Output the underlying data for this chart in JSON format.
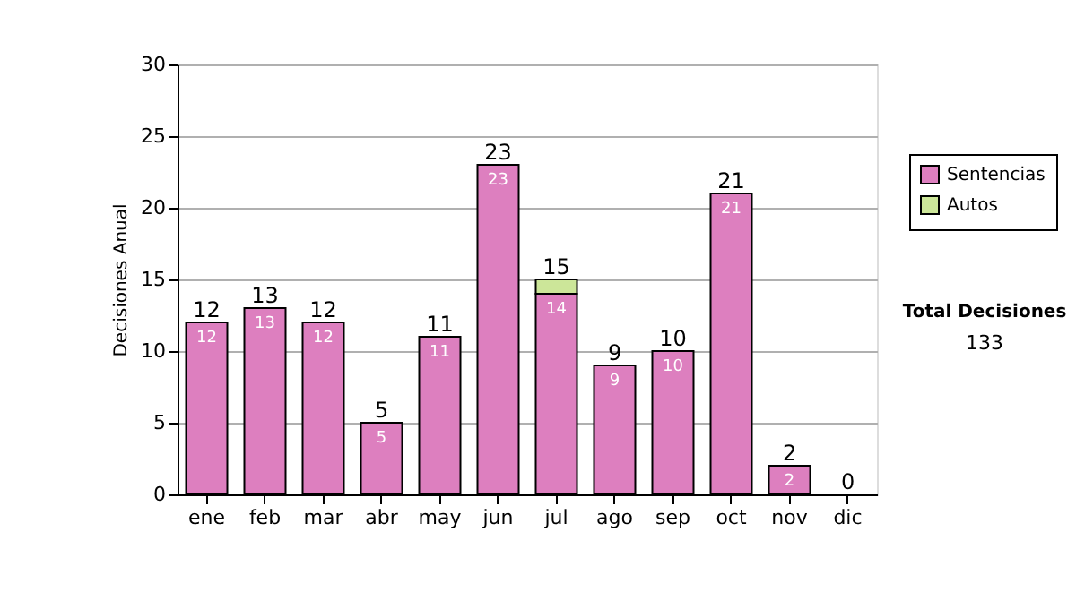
{
  "chart_data": {
    "type": "bar",
    "stacked": true,
    "ylabel": "Decisiones Anual",
    "categories": [
      "ene",
      "feb",
      "mar",
      "abr",
      "may",
      "jun",
      "jul",
      "ago",
      "sep",
      "oct",
      "nov",
      "dic"
    ],
    "series": [
      {
        "name": "Sentencias",
        "color": "#dd7fbf",
        "values": [
          12,
          13,
          12,
          5,
          11,
          23,
          14,
          9,
          10,
          21,
          2,
          0
        ],
        "value_labels": [
          "12",
          "13",
          "12",
          "5",
          "11",
          "23",
          "14",
          "9",
          "10",
          "21",
          "2",
          null
        ]
      },
      {
        "name": "Autos",
        "color": "#cce699",
        "values": [
          0,
          0,
          0,
          0,
          0,
          0,
          1,
          0,
          0,
          0,
          0,
          0
        ]
      }
    ],
    "totals": [
      "12",
      "13",
      "12",
      "5",
      "11",
      "23",
      "15",
      "9",
      "10",
      "21",
      "2",
      "0"
    ],
    "ylim": [
      0,
      30
    ],
    "yticks": [
      0,
      5,
      10,
      15,
      20,
      25,
      30
    ],
    "grid": "y",
    "legend": "right",
    "annotations": [
      "Total Decisiones",
      "133"
    ]
  }
}
